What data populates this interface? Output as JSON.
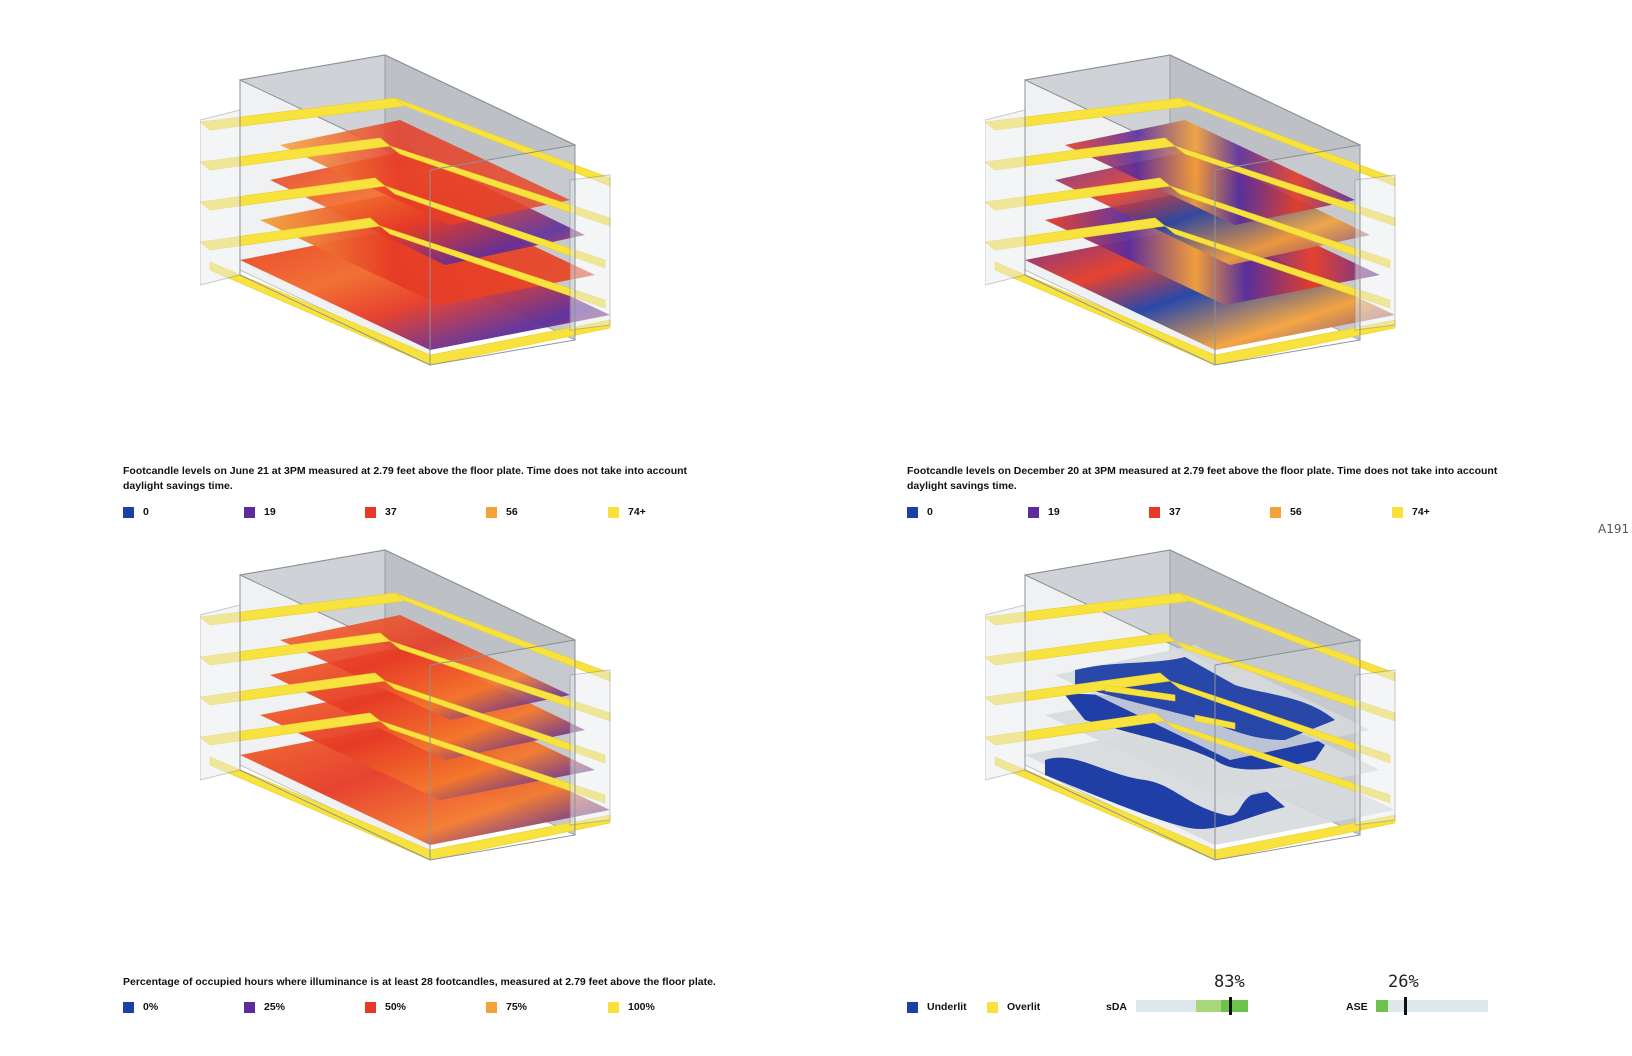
{
  "sheet_number": "A191",
  "colors": {
    "blue": "#1f3fa6",
    "purple": "#5a2d9c",
    "red": "#e63a26",
    "orange": "#f4a23a",
    "yellow": "#f7e23e",
    "gauge_light_green": "#a8d87a",
    "gauge_green": "#6cc24a",
    "gauge_track": "#dde8ee"
  },
  "panels": [
    {
      "caption": "Footcandle levels on June 21 at 3PM measured at 2.79 feet above the floor plate. Time does not take into account daylight savings time.",
      "legend": [
        {
          "label": "0",
          "color": "#1f3fa6"
        },
        {
          "label": "19",
          "color": "#5a2d9c"
        },
        {
          "label": "37",
          "color": "#e63a26"
        },
        {
          "label": "56",
          "color": "#f4a23a"
        },
        {
          "label": "74+",
          "color": "#f7e23e"
        }
      ]
    },
    {
      "caption": "Footcandle levels on December 20 at 3PM measured at 2.79 feet above the floor plate. Time does not take into account daylight savings time.",
      "legend": [
        {
          "label": "0",
          "color": "#1f3fa6"
        },
        {
          "label": "19",
          "color": "#5a2d9c"
        },
        {
          "label": "37",
          "color": "#e63a26"
        },
        {
          "label": "56",
          "color": "#f4a23a"
        },
        {
          "label": "74+",
          "color": "#f7e23e"
        }
      ]
    },
    {
      "caption": "Percentage of occupied hours where illuminance is at least 28 footcandles, measured at 2.79 feet above the floor plate.",
      "legend": [
        {
          "label": "0%",
          "color": "#1f3fa6"
        },
        {
          "label": "25%",
          "color": "#5a2d9c"
        },
        {
          "label": "50%",
          "color": "#e63a26"
        },
        {
          "label": "75%",
          "color": "#f4a23a"
        },
        {
          "label": "100%",
          "color": "#f7e23e"
        }
      ]
    },
    {
      "caption": "",
      "legend": [
        {
          "label": "Underlit",
          "color": "#1f3fa6"
        },
        {
          "label": "Overlit",
          "color": "#f7e23e"
        }
      ],
      "gauges": [
        {
          "label": "sDA",
          "percent_text": "83%",
          "value": 83
        },
        {
          "label": "ASE",
          "percent_text": "26%",
          "value": 26
        }
      ]
    }
  ]
}
